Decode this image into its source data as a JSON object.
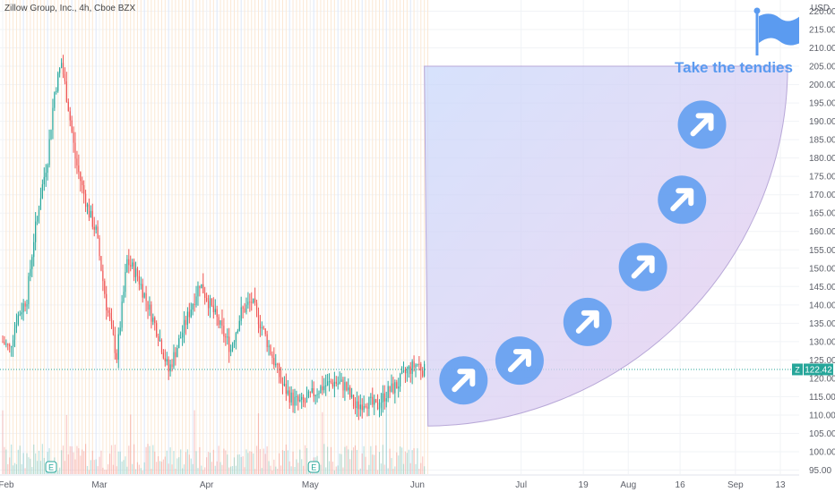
{
  "chart_data": {
    "type": "candlestick",
    "title": "Zillow Group, Inc., 4h, Cboe BZX",
    "currency": "USD",
    "ticker_symbol": "Z",
    "last_price": "122.42",
    "ylim": [
      93,
      221
    ],
    "y_ticks": [
      95,
      100,
      105,
      110,
      115,
      120,
      125,
      130,
      135,
      140,
      145,
      150,
      155,
      160,
      165,
      170,
      175,
      180,
      185,
      190,
      195,
      200,
      205,
      210,
      215,
      220
    ],
    "x_ticks": [
      {
        "label": "Feb",
        "day": 1
      },
      {
        "label": "Mar",
        "day": 29
      },
      {
        "label": "Apr",
        "day": 60
      },
      {
        "label": "May",
        "day": 90
      },
      {
        "label": "Jun",
        "day": 121
      },
      {
        "label": "Jul",
        "day": 151
      },
      {
        "label": "19",
        "day": 169
      },
      {
        "label": "Aug",
        "day": 182
      },
      {
        "label": "16",
        "day": 197
      },
      {
        "label": "Sep",
        "day": 213
      },
      {
        "label": "13",
        "day": 226
      }
    ],
    "price_path": [
      {
        "day": 1,
        "price": 130
      },
      {
        "day": 3,
        "price": 128
      },
      {
        "day": 5,
        "price": 136
      },
      {
        "day": 8,
        "price": 142
      },
      {
        "day": 10,
        "price": 158
      },
      {
        "day": 12,
        "price": 170
      },
      {
        "day": 14,
        "price": 180
      },
      {
        "day": 16,
        "price": 198
      },
      {
        "day": 18,
        "price": 206
      },
      {
        "day": 20,
        "price": 194
      },
      {
        "day": 22,
        "price": 180
      },
      {
        "day": 24,
        "price": 172
      },
      {
        "day": 26,
        "price": 165
      },
      {
        "day": 28,
        "price": 160
      },
      {
        "day": 31,
        "price": 140
      },
      {
        "day": 34,
        "price": 126
      },
      {
        "day": 37,
        "price": 152
      },
      {
        "day": 40,
        "price": 148
      },
      {
        "day": 43,
        "price": 140
      },
      {
        "day": 46,
        "price": 132
      },
      {
        "day": 49,
        "price": 122
      },
      {
        "day": 52,
        "price": 130
      },
      {
        "day": 55,
        "price": 138
      },
      {
        "day": 58,
        "price": 146
      },
      {
        "day": 61,
        "price": 140
      },
      {
        "day": 64,
        "price": 134
      },
      {
        "day": 67,
        "price": 128
      },
      {
        "day": 70,
        "price": 138
      },
      {
        "day": 73,
        "price": 141
      },
      {
        "day": 76,
        "price": 134
      },
      {
        "day": 79,
        "price": 126
      },
      {
        "day": 82,
        "price": 118
      },
      {
        "day": 85,
        "price": 114
      },
      {
        "day": 88,
        "price": 113
      },
      {
        "day": 91,
        "price": 116
      },
      {
        "day": 94,
        "price": 118
      },
      {
        "day": 97,
        "price": 119
      },
      {
        "day": 100,
        "price": 118
      },
      {
        "day": 103,
        "price": 112
      },
      {
        "day": 106,
        "price": 114
      },
      {
        "day": 109,
        "price": 112
      },
      {
        "day": 112,
        "price": 116
      },
      {
        "day": 115,
        "price": 118
      },
      {
        "day": 118,
        "price": 122
      },
      {
        "day": 121,
        "price": 124
      },
      {
        "day": 123,
        "price": 122
      }
    ],
    "grid": true,
    "annotation": {
      "text": "Take the tendies",
      "arrows": 6,
      "shape_start": {
        "day": 123,
        "price": 205
      },
      "shape_end": {
        "day": 225,
        "price": 107
      }
    }
  }
}
